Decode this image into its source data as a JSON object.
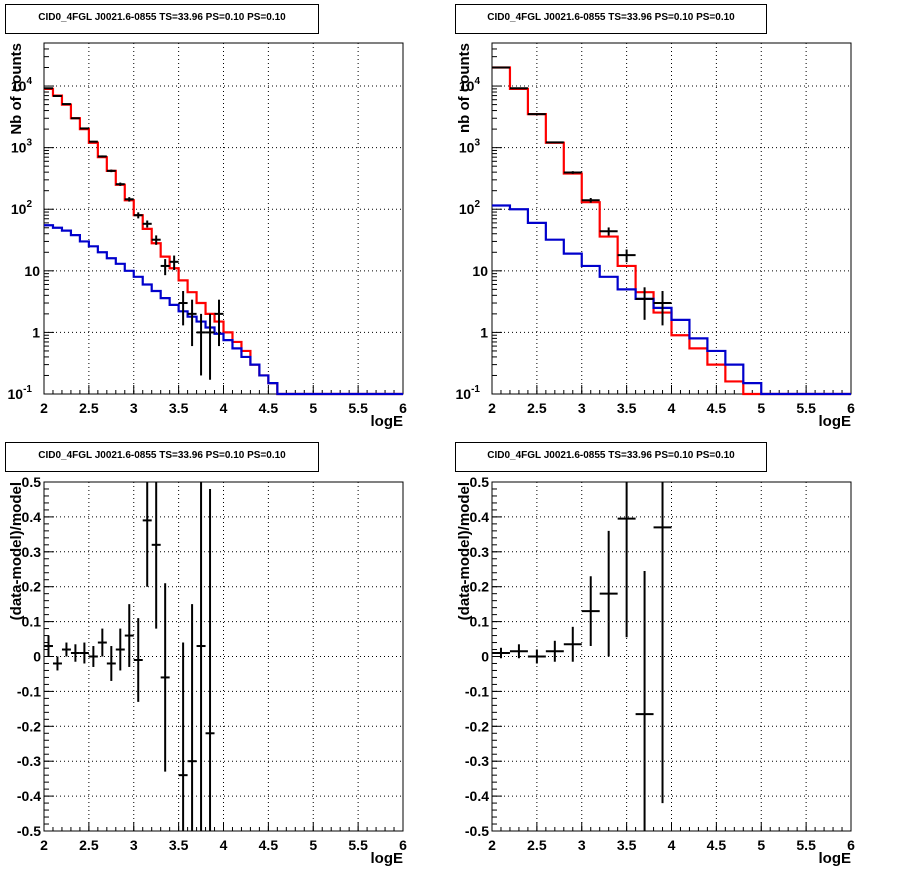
{
  "chart_data": [
    {
      "type": "histogram",
      "title": "CID0_4FGL J0021.6-0855 TS=33.96 PS=0.10 PS=0.10",
      "xlabel": "logE",
      "ylabel": "Nb of counts",
      "yscale": "log",
      "xlim": [
        2,
        6
      ],
      "ylim": [
        0.1,
        50000
      ],
      "xticks": [
        "2",
        "2.5",
        "3",
        "3.5",
        "4",
        "4.5",
        "5",
        "5.5",
        "6"
      ],
      "yticks": [
        "10^-1",
        "1",
        "10",
        "10^2",
        "10^3",
        "10^4"
      ],
      "grid": true,
      "bin_edges": [
        2.0,
        2.1,
        2.2,
        2.3,
        2.4,
        2.5,
        2.6,
        2.7,
        2.8,
        2.9,
        3.0,
        3.1,
        3.2,
        3.3,
        3.4,
        3.5,
        3.6,
        3.7,
        3.8,
        3.9,
        4.0,
        4.1,
        4.2,
        4.3,
        4.4,
        4.5,
        4.6,
        4.7,
        4.8,
        4.9,
        5.0,
        5.1,
        5.2,
        5.3,
        5.4,
        5.5,
        5.6,
        5.7,
        5.8,
        5.9,
        6.0
      ],
      "series": [
        {
          "color": "#ff0000",
          "kind": "step",
          "values": [
            9000,
            7000,
            5000,
            3000,
            2000,
            1200,
            700,
            420,
            250,
            140,
            80,
            48,
            28,
            17,
            11,
            7,
            4.5,
            3,
            2,
            1.5,
            1.0,
            0.7,
            0.5,
            0.3,
            0.2,
            0.15,
            0.1,
            0.1,
            0.1,
            0.1,
            0.1,
            0.1,
            0.1,
            0.1,
            0.1,
            0.1,
            0.1,
            0.1,
            0.1,
            0.1
          ]
        },
        {
          "color": "#0000cc",
          "kind": "step",
          "values": [
            55,
            50,
            45,
            38,
            30,
            25,
            20,
            16,
            13,
            10,
            8,
            6,
            4.7,
            3.6,
            2.8,
            2.2,
            1.8,
            1.5,
            1.2,
            0.95,
            0.75,
            0.55,
            0.4,
            0.3,
            0.2,
            0.15,
            0.1,
            0.1,
            0.1,
            0.1,
            0.1,
            0.1,
            0.1,
            0.1,
            0.1,
            0.1,
            0.1,
            0.1,
            0.1,
            0.1
          ]
        },
        {
          "color": "#000000",
          "kind": "points",
          "x": [
            2.05,
            2.15,
            2.25,
            2.35,
            2.45,
            2.55,
            2.65,
            2.75,
            2.85,
            2.95,
            3.05,
            3.15,
            3.25,
            3.35,
            3.45,
            3.55,
            3.65,
            3.75,
            3.85,
            3.95
          ],
          "y": [
            9200,
            6900,
            5100,
            3000,
            2050,
            1250,
            720,
            420,
            255,
            145,
            80,
            58,
            32,
            12,
            14,
            3,
            2,
            1,
            1,
            2
          ],
          "yerr_lo": [
            100,
            80,
            70,
            55,
            45,
            35,
            27,
            20,
            16,
            12,
            9,
            7.6,
            5.6,
            3.5,
            3.7,
            1.7,
            1.4,
            0.8,
            0.83,
            1.4
          ],
          "yerr_hi": [
            100,
            80,
            70,
            55,
            45,
            35,
            27,
            20,
            16,
            12,
            9,
            7.6,
            5.6,
            3.5,
            3.7,
            1.7,
            1.4,
            1.0,
            1.0,
            1.4
          ]
        }
      ]
    },
    {
      "type": "histogram",
      "title": "CID0_4FGL J0021.6-0855 TS=33.96 PS=0.10 PS=0.10",
      "xlabel": "logE",
      "ylabel": "nb of counts",
      "yscale": "log",
      "xlim": [
        2,
        6
      ],
      "ylim": [
        0.1,
        50000
      ],
      "xticks": [
        "2",
        "2.5",
        "3",
        "3.5",
        "4",
        "4.5",
        "5",
        "5.5",
        "6"
      ],
      "yticks": [
        "10^-1",
        "1",
        "10",
        "10^2",
        "10^3",
        "10^4"
      ],
      "grid": true,
      "bin_edges": [
        2.0,
        2.2,
        2.4,
        2.6,
        2.8,
        3.0,
        3.2,
        3.4,
        3.6,
        3.8,
        4.0,
        4.2,
        4.4,
        4.6,
        4.8,
        5.0,
        5.2,
        5.4,
        5.6,
        5.8,
        6.0
      ],
      "series": [
        {
          "color": "#ff0000",
          "kind": "step",
          "values": [
            20000,
            9000,
            3500,
            1200,
            380,
            130,
            36,
            12,
            4.5,
            2.1,
            0.9,
            0.55,
            0.3,
            0.16,
            0.1,
            0.1,
            0.1,
            0.1,
            0.1,
            0.1
          ]
        },
        {
          "color": "#0000cc",
          "kind": "step",
          "values": [
            115,
            100,
            60,
            32,
            19,
            12,
            8,
            5,
            3.5,
            2.5,
            1.6,
            0.8,
            0.5,
            0.3,
            0.15,
            0.1,
            0.1,
            0.1,
            0.1,
            0.1
          ]
        },
        {
          "color": "#000000",
          "kind": "points",
          "x": [
            2.1,
            2.3,
            2.5,
            2.7,
            2.9,
            3.1,
            3.3,
            3.5,
            3.7,
            3.9
          ],
          "y": [
            20000,
            9200,
            3500,
            1220,
            395,
            140,
            44,
            18,
            3.5,
            3
          ],
          "yerr_lo": [
            140,
            96,
            59,
            35,
            20,
            12,
            6.6,
            4.2,
            1.9,
            1.7
          ],
          "yerr_hi": [
            140,
            96,
            59,
            35,
            20,
            12,
            6.6,
            4.2,
            1.9,
            1.7
          ]
        }
      ]
    },
    {
      "type": "scatter",
      "title": "CID0_4FGL J0021.6-0855 TS=33.96 PS=0.10 PS=0.10",
      "xlabel": "logE",
      "ylabel": "(data-model)/model",
      "xlim": [
        2,
        6
      ],
      "ylim": [
        -0.5,
        0.5
      ],
      "xticks": [
        "2",
        "2.5",
        "3",
        "3.5",
        "4",
        "4.5",
        "5",
        "5.5",
        "6"
      ],
      "yticks": [
        "-0.5",
        "-0.4",
        "-0.3",
        "-0.2",
        "-0.1",
        "0",
        "0.1",
        "0.2",
        "0.3",
        "0.4",
        "0.5"
      ],
      "grid": true,
      "xerr": 0.05,
      "series": [
        {
          "color": "#000000",
          "x": [
            2.05,
            2.15,
            2.25,
            2.35,
            2.45,
            2.55,
            2.65,
            2.75,
            2.85,
            2.95,
            3.05,
            3.15,
            3.25,
            3.35,
            3.55,
            3.65,
            3.75,
            3.85
          ],
          "y": [
            0.03,
            -0.02,
            0.02,
            0.01,
            0.01,
            0.0,
            0.04,
            -0.02,
            0.02,
            0.06,
            -0.01,
            0.39,
            0.32,
            -0.06,
            -0.34,
            -0.3,
            0.03,
            -0.22
          ],
          "yerr": [
            0.03,
            0.02,
            0.02,
            0.025,
            0.03,
            0.03,
            0.04,
            0.05,
            0.06,
            0.09,
            0.12,
            0.19,
            0.24,
            0.27,
            0.38,
            0.45,
            0.55,
            0.7
          ]
        }
      ]
    },
    {
      "type": "scatter",
      "title": "CID0_4FGL J0021.6-0855 TS=33.96 PS=0.10 PS=0.10",
      "xlabel": "logE",
      "ylabel": "(data-model)/model",
      "xlim": [
        2,
        6
      ],
      "ylim": [
        -0.5,
        0.5
      ],
      "xticks": [
        "2",
        "2.5",
        "3",
        "3.5",
        "4",
        "4.5",
        "5",
        "5.5",
        "6"
      ],
      "yticks": [
        "-0.5",
        "-0.4",
        "-0.3",
        "-0.2",
        "-0.1",
        "0",
        "0.1",
        "0.2",
        "0.3",
        "0.4",
        "0.5"
      ],
      "grid": true,
      "xerr": 0.1,
      "series": [
        {
          "color": "#000000",
          "x": [
            2.1,
            2.3,
            2.5,
            2.7,
            2.9,
            3.1,
            3.3,
            3.5,
            3.7,
            3.9
          ],
          "y": [
            0.01,
            0.015,
            0.0,
            0.015,
            0.035,
            0.13,
            0.18,
            0.395,
            -0.165,
            0.37
          ],
          "yerr": [
            0.015,
            0.02,
            0.02,
            0.03,
            0.05,
            0.1,
            0.18,
            0.34,
            0.41,
            0.79
          ]
        }
      ]
    }
  ]
}
